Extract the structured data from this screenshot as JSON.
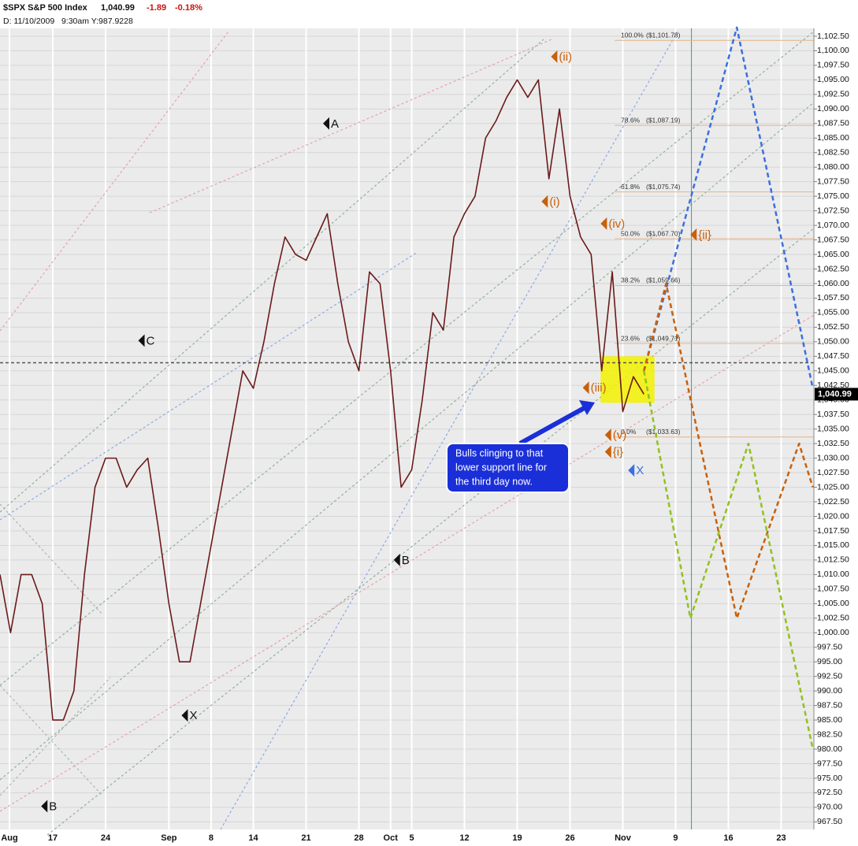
{
  "chart_data": {
    "type": "line",
    "title": "$SPX S&P 500 Index",
    "last": {
      "value": 1040.99,
      "label": "1,040.99"
    },
    "change": -1.89,
    "change_pct": {
      "value": -0.18,
      "label": "-0.18%"
    },
    "subtitle": "D: 11/10/2009   9:30am Y:987.9228",
    "xlim": [
      5,
      82.1
    ],
    "ylim": [
      966.2,
      1103.85
    ],
    "xticks": [
      {
        "value": 5.9,
        "label": "Aug"
      },
      {
        "value": 10,
        "label": "17"
      },
      {
        "value": 15,
        "label": "24"
      },
      {
        "value": 21,
        "label": "Sep"
      },
      {
        "value": 25,
        "label": "8"
      },
      {
        "value": 29,
        "label": "14"
      },
      {
        "value": 34,
        "label": "21"
      },
      {
        "value": 39,
        "label": "28"
      },
      {
        "value": 42,
        "label": "Oct"
      },
      {
        "value": 44,
        "label": "5"
      },
      {
        "value": 49,
        "label": "12"
      },
      {
        "value": 54,
        "label": "19"
      },
      {
        "value": 59,
        "label": "26"
      },
      {
        "value": 64,
        "label": "Nov"
      },
      {
        "value": 69,
        "label": "9"
      },
      {
        "value": 74,
        "label": "16"
      },
      {
        "value": 79,
        "label": "23"
      }
    ],
    "yticks": [
      {
        "value": 967.5,
        "label": "967.50"
      },
      {
        "value": 970,
        "label": "970.00"
      },
      {
        "value": 972.5,
        "label": "972.50"
      },
      {
        "value": 975,
        "label": "975.00"
      },
      {
        "value": 977.5,
        "label": "977.50"
      },
      {
        "value": 980,
        "label": "980.00"
      },
      {
        "value": 982.5,
        "label": "982.50"
      },
      {
        "value": 985,
        "label": "985.00"
      },
      {
        "value": 987.5,
        "label": "987.50"
      },
      {
        "value": 990,
        "label": "990.00"
      },
      {
        "value": 992.5,
        "label": "992.50"
      },
      {
        "value": 995,
        "label": "995.00"
      },
      {
        "value": 997.5,
        "label": "997.50"
      },
      {
        "value": 1000,
        "label": "1,000.00"
      },
      {
        "value": 1002.5,
        "label": "1,002.50"
      },
      {
        "value": 1005,
        "label": "1,005.00"
      },
      {
        "value": 1007.5,
        "label": "1,007.50"
      },
      {
        "value": 1010,
        "label": "1,010.00"
      },
      {
        "value": 1012.5,
        "label": "1,012.50"
      },
      {
        "value": 1015,
        "label": "1,015.00"
      },
      {
        "value": 1017.5,
        "label": "1,017.50"
      },
      {
        "value": 1020,
        "label": "1,020.00"
      },
      {
        "value": 1022.5,
        "label": "1,022.50"
      },
      {
        "value": 1025,
        "label": "1,025.00"
      },
      {
        "value": 1027.5,
        "label": "1,027.50"
      },
      {
        "value": 1030,
        "label": "1,030.00"
      },
      {
        "value": 1032.5,
        "label": "1,032.50"
      },
      {
        "value": 1035,
        "label": "1,035.00"
      },
      {
        "value": 1037.5,
        "label": "1,037.50"
      },
      {
        "value": 1040,
        "label": "1,040.00"
      },
      {
        "value": 1042.5,
        "label": "1,042.50"
      },
      {
        "value": 1045,
        "label": "1,045.00"
      },
      {
        "value": 1047.5,
        "label": "1,047.50"
      },
      {
        "value": 1050,
        "label": "1,050.00"
      },
      {
        "value": 1052.5,
        "label": "1,052.50"
      },
      {
        "value": 1055,
        "label": "1,055.00"
      },
      {
        "value": 1057.5,
        "label": "1,057.50"
      },
      {
        "value": 1060,
        "label": "1,060.00"
      },
      {
        "value": 1062.5,
        "label": "1,062.50"
      },
      {
        "value": 1065,
        "label": "1,065.00"
      },
      {
        "value": 1067.5,
        "label": "1,067.50"
      },
      {
        "value": 1070,
        "label": "1,070.00"
      },
      {
        "value": 1072.5,
        "label": "1,072.50"
      },
      {
        "value": 1075,
        "label": "1,075.00"
      },
      {
        "value": 1077.5,
        "label": "1,077.50"
      },
      {
        "value": 1080,
        "label": "1,080.00"
      },
      {
        "value": 1082.5,
        "label": "1,082.50"
      },
      {
        "value": 1085,
        "label": "1,085.00"
      },
      {
        "value": 1087.5,
        "label": "1,087.50"
      },
      {
        "value": 1090,
        "label": "1,090.00"
      },
      {
        "value": 1092.5,
        "label": "1,092.50"
      },
      {
        "value": 1095,
        "label": "1,095.00"
      },
      {
        "value": 1097.5,
        "label": "1,097.50"
      },
      {
        "value": 1100,
        "label": "1,100.00"
      },
      {
        "value": 1102.5,
        "label": "1,102.50"
      }
    ],
    "grid": true,
    "series": [
      {
        "color": "#6b1a1a",
        "x": [
          5,
          6,
          7,
          8,
          9,
          10,
          11,
          12,
          13,
          14,
          15,
          16,
          17,
          18,
          19,
          20,
          21,
          22,
          23,
          24,
          25,
          26,
          27,
          28,
          29,
          30,
          31,
          32,
          33,
          34,
          35,
          36,
          37,
          38,
          39,
          40,
          41,
          42,
          43,
          44,
          45,
          46,
          47,
          48,
          49,
          50,
          51,
          52,
          53,
          54,
          55,
          56,
          57,
          58,
          59,
          60,
          61,
          62,
          63,
          64,
          65,
          66
        ],
        "values": [
          1010,
          1000,
          1010,
          1010,
          1005,
          985,
          985,
          990,
          1010,
          1025,
          1030,
          1030,
          1025,
          1028,
          1030,
          1018,
          1005,
          995,
          995,
          1005,
          1015,
          1025,
          1035,
          1045,
          1042,
          1050,
          1060,
          1068,
          1065,
          1064,
          1068,
          1072,
          1060,
          1050,
          1045,
          1062,
          1060,
          1045,
          1025,
          1028,
          1040,
          1055,
          1052,
          1068,
          1072,
          1075,
          1085,
          1088,
          1092,
          1095,
          1092,
          1095,
          1078,
          1090,
          1075,
          1068,
          1065,
          1045,
          1062,
          1038,
          1044,
          1040.99
        ]
      },
      {
        "color": "#3a6fe0",
        "x": [
          66,
          74.8,
          82
        ],
        "values": [
          1045,
          1104,
          1042
        ]
      },
      {
        "color": "#c8600a",
        "x": [
          66,
          68.1,
          74.8,
          80.7,
          82
        ],
        "values": [
          1045,
          1060,
          1002.5,
          1032.5,
          1025
        ]
      },
      {
        "color": "#8fc21e",
        "x": [
          66,
          70.4,
          75.9,
          82
        ],
        "values": [
          1045,
          1002.5,
          1032.5,
          980
        ]
      }
    ],
    "fib_levels": [
      {
        "label": "100.0%",
        "price_label": "($1,101.78)",
        "value": 1101.78
      },
      {
        "label": "78.6%",
        "price_label": "($1,087.19)",
        "value": 1087.19
      },
      {
        "label": "61.8%",
        "price_label": "($1,075.74)",
        "value": 1075.74
      },
      {
        "label": "50.0%",
        "price_label": "($1,067.70)",
        "value": 1067.7
      },
      {
        "label": "38.2%",
        "price_label": "($1,059.66)",
        "value": 1059.66
      },
      {
        "label": "23.6%",
        "price_label": "($1,049.71)",
        "value": 1049.71
      },
      {
        "label": "0.0%",
        "price_label": "($1,033.63)",
        "value": 1033.63
      }
    ],
    "annotations": [
      {
        "text": "A",
        "x": 35.6,
        "y": 1087.5,
        "color": "#111111"
      },
      {
        "text": "C",
        "x": 18.1,
        "y": 1050.2,
        "color": "#111111"
      },
      {
        "text": "B",
        "x": 42.3,
        "y": 1012.5,
        "color": "#111111"
      },
      {
        "text": "X",
        "x": 22.2,
        "y": 985.8,
        "color": "#111111"
      },
      {
        "text": "B",
        "x": 8.9,
        "y": 970.2,
        "color": "#111111"
      },
      {
        "text": "(ii)",
        "x": 57.2,
        "y": 1099,
        "color": "#c8600a"
      },
      {
        "text": "(i)",
        "x": 56.3,
        "y": 1074.1,
        "color": "#c8600a"
      },
      {
        "text": "(iii)",
        "x": 60.2,
        "y": 1042.1,
        "color": "#c8600a"
      },
      {
        "text": "(iv)",
        "x": 61.9,
        "y": 1070.3,
        "color": "#c8600a"
      },
      {
        "text": "(v)",
        "x": 62.3,
        "y": 1034,
        "color": "#c8600a"
      },
      {
        "text": "{i}",
        "x": 62.3,
        "y": 1031.1,
        "color": "#c8600a"
      },
      {
        "text": "{ii}",
        "x": 70.4,
        "y": 1068.4,
        "color": "#c8600a"
      },
      {
        "text": "X",
        "x": 64.5,
        "y": 1027.9,
        "color": "#3a6fe0"
      }
    ],
    "highlight": {
      "x": [
        61.9,
        67
      ],
      "y": [
        1039.5,
        1047.5
      ]
    },
    "vline": 70.5,
    "ref_line": 1046.4,
    "callout": [
      "Bulls clinging to that",
      "lower support line for",
      "the third day now."
    ]
  }
}
